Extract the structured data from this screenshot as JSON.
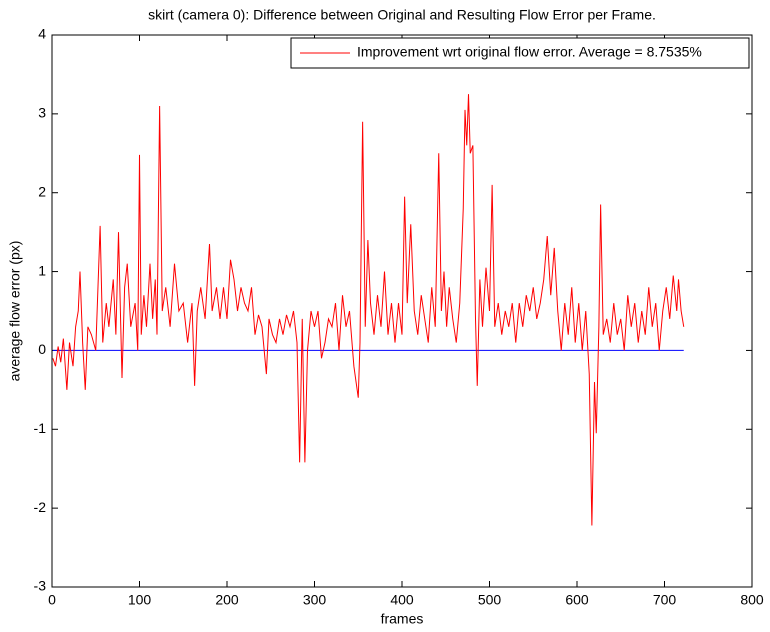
{
  "chart_data": {
    "type": "line",
    "title": "skirt (camera 0): Difference between Original and Resulting Flow Error per Frame.",
    "xlabel": "frames",
    "ylabel": "average flow error (px)",
    "xlim": [
      0,
      800
    ],
    "ylim": [
      -3,
      4
    ],
    "xticks": [
      0,
      100,
      200,
      300,
      400,
      500,
      600,
      700,
      800
    ],
    "yticks": [
      -3,
      -2,
      -1,
      0,
      1,
      2,
      3,
      4
    ],
    "legend": "northeast",
    "grid": false,
    "series": [
      {
        "name": "Improvement wrt original flow error. Average = 8.7535%",
        "color": "#ff0000",
        "x": [
          1,
          4,
          7,
          10,
          13,
          17,
          20,
          24,
          27,
          30,
          32,
          35,
          38,
          41,
          45,
          50,
          55,
          58,
          62,
          65,
          70,
          73,
          76,
          80,
          83,
          86,
          90,
          95,
          98,
          100,
          102,
          105,
          108,
          112,
          115,
          118,
          120,
          123,
          126,
          130,
          135,
          140,
          145,
          150,
          155,
          160,
          163,
          166,
          170,
          175,
          180,
          183,
          188,
          192,
          196,
          200,
          204,
          208,
          212,
          216,
          220,
          224,
          228,
          232,
          236,
          240,
          245,
          248,
          252,
          256,
          260,
          264,
          268,
          272,
          276,
          280,
          283,
          286,
          289,
          292,
          296,
          300,
          304,
          308,
          312,
          316,
          320,
          324,
          328,
          332,
          336,
          340,
          345,
          350,
          352,
          355,
          358,
          361,
          364,
          368,
          372,
          376,
          380,
          384,
          388,
          392,
          396,
          400,
          403,
          406,
          410,
          414,
          418,
          422,
          426,
          430,
          434,
          438,
          442,
          445,
          448,
          451,
          454,
          458,
          462,
          466,
          470,
          472,
          474,
          476,
          478,
          481,
          484,
          486,
          489,
          492,
          496,
          500,
          503,
          506,
          510,
          514,
          518,
          522,
          526,
          530,
          534,
          538,
          542,
          546,
          550,
          554,
          558,
          562,
          566,
          570,
          574,
          578,
          582,
          586,
          590,
          594,
          598,
          602,
          606,
          610,
          614,
          617,
          620,
          622,
          625,
          627,
          630,
          634,
          638,
          642,
          646,
          650,
          654,
          658,
          662,
          666,
          670,
          674,
          678,
          682,
          686,
          690,
          694,
          698,
          702,
          706,
          710,
          714,
          716,
          719,
          722
        ],
        "values": [
          -0.1,
          -0.2,
          0.05,
          -0.15,
          0.15,
          -0.5,
          0.1,
          -0.2,
          0.3,
          0.5,
          1.0,
          0.1,
          -0.5,
          0.3,
          0.2,
          0.0,
          1.58,
          0.1,
          0.6,
          0.3,
          0.9,
          0.2,
          1.5,
          -0.35,
          0.8,
          1.1,
          0.3,
          0.6,
          0.0,
          2.48,
          0.2,
          0.7,
          0.3,
          1.1,
          0.4,
          0.9,
          0.2,
          3.1,
          0.5,
          0.8,
          0.3,
          1.1,
          0.5,
          0.6,
          0.1,
          0.6,
          -0.45,
          0.5,
          0.8,
          0.4,
          1.35,
          0.5,
          0.8,
          0.4,
          0.8,
          0.4,
          1.15,
          0.9,
          0.5,
          0.8,
          0.6,
          0.5,
          0.8,
          0.2,
          0.45,
          0.3,
          -0.3,
          0.4,
          0.2,
          0.1,
          0.4,
          0.2,
          0.45,
          0.3,
          0.5,
          0.1,
          -1.42,
          0.4,
          -1.42,
          0.0,
          0.5,
          0.3,
          0.5,
          -0.1,
          0.1,
          0.4,
          0.3,
          0.6,
          0.0,
          0.7,
          0.3,
          0.5,
          -0.2,
          -0.6,
          0.1,
          2.9,
          0.3,
          1.4,
          0.6,
          0.2,
          0.7,
          0.3,
          1.0,
          0.2,
          0.6,
          0.1,
          0.6,
          0.2,
          1.95,
          0.6,
          1.6,
          0.5,
          0.2,
          0.7,
          0.4,
          0.1,
          0.8,
          0.3,
          2.5,
          0.5,
          1.0,
          0.3,
          0.8,
          0.4,
          0.1,
          0.6,
          1.8,
          3.05,
          2.6,
          3.25,
          2.5,
          2.6,
          0.4,
          -0.45,
          0.9,
          0.3,
          1.05,
          0.5,
          2.1,
          0.3,
          0.6,
          0.2,
          0.5,
          0.3,
          0.6,
          0.1,
          0.6,
          0.3,
          0.7,
          0.5,
          0.8,
          0.4,
          0.6,
          0.9,
          1.45,
          0.7,
          1.3,
          0.5,
          0.0,
          0.6,
          0.2,
          0.8,
          0.1,
          0.6,
          0.0,
          0.5,
          -0.3,
          -2.22,
          -0.4,
          -1.05,
          0.3,
          1.85,
          0.2,
          0.4,
          0.1,
          0.6,
          0.2,
          0.4,
          0.0,
          0.7,
          0.3,
          0.6,
          0.1,
          0.5,
          0.2,
          0.8,
          0.3,
          0.6,
          0.0,
          0.5,
          0.8,
          0.4,
          0.95,
          0.5,
          0.9,
          0.5,
          0.3
        ]
      },
      {
        "color": "#0000ff",
        "x": [
          1,
          722
        ],
        "values": [
          0,
          0
        ]
      }
    ]
  }
}
